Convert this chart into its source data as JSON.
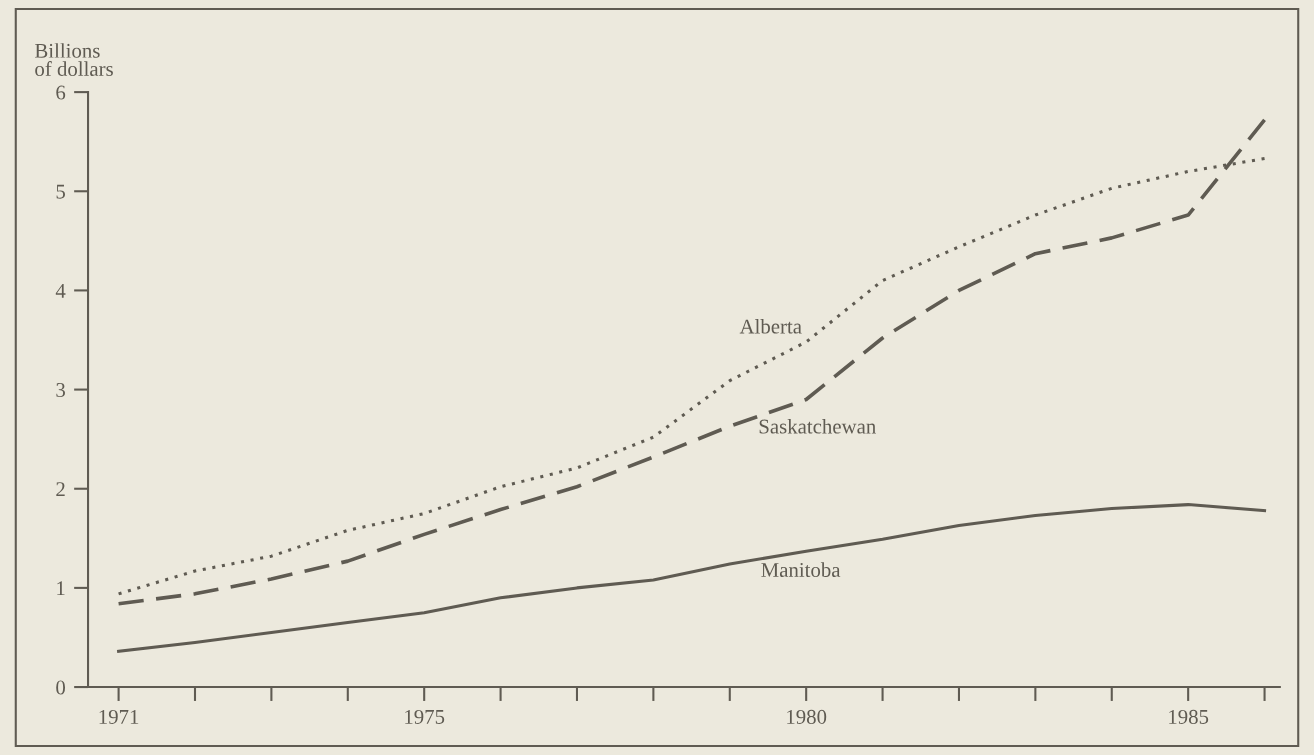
{
  "chart_data": {
    "type": "line",
    "ylabel": "Billions\nof dollars",
    "x": [
      1971,
      1972,
      1973,
      1974,
      1975,
      1976,
      1977,
      1978,
      1979,
      1980,
      1981,
      1982,
      1983,
      1984,
      1985,
      1986
    ],
    "series": [
      {
        "name": "Alberta",
        "color": "#5f5b52",
        "line_style": "dotted",
        "values": [
          0.94,
          1.17,
          1.32,
          1.58,
          1.75,
          2.02,
          2.21,
          2.52,
          3.09,
          3.48,
          4.1,
          4.44,
          4.76,
          5.03,
          5.2,
          5.33
        ]
      },
      {
        "name": "Saskatchewan",
        "color": "#5f5b52",
        "line_style": "dashed",
        "values": [
          0.84,
          0.94,
          1.09,
          1.27,
          1.54,
          1.79,
          2.02,
          2.32,
          2.63,
          2.9,
          3.52,
          4.0,
          4.37,
          4.53,
          4.76,
          5.72
        ]
      },
      {
        "name": "Manitoba",
        "color": "#5f5b52",
        "line_style": "solid",
        "values": [
          0.36,
          0.45,
          0.55,
          0.65,
          0.75,
          0.9,
          1.0,
          1.08,
          1.24,
          1.37,
          1.49,
          1.63,
          1.73,
          1.8,
          1.84,
          1.78
        ]
      }
    ],
    "xlim": [
      1970.6,
      1986.2
    ],
    "ylim": [
      0,
      6
    ],
    "yticks": [
      0,
      1,
      2,
      3,
      4,
      5,
      6
    ],
    "xticks": [
      1971,
      {
        "value": 1972,
        "label": null
      },
      {
        "value": 1973,
        "label": null
      },
      {
        "value": 1974,
        "label": null
      },
      1975,
      {
        "value": 1976,
        "label": null
      },
      {
        "value": 1977,
        "label": null
      },
      {
        "value": 1978,
        "label": null
      },
      {
        "value": 1979,
        "label": null
      },
      1980,
      {
        "value": 1981,
        "label": null
      },
      {
        "value": 1982,
        "label": null
      },
      {
        "value": 1983,
        "label": null
      },
      {
        "value": 1984,
        "label": null
      },
      1985,
      {
        "value": 1986,
        "label": null
      }
    ],
    "grid": false,
    "legend": false,
    "marker": "none"
  }
}
